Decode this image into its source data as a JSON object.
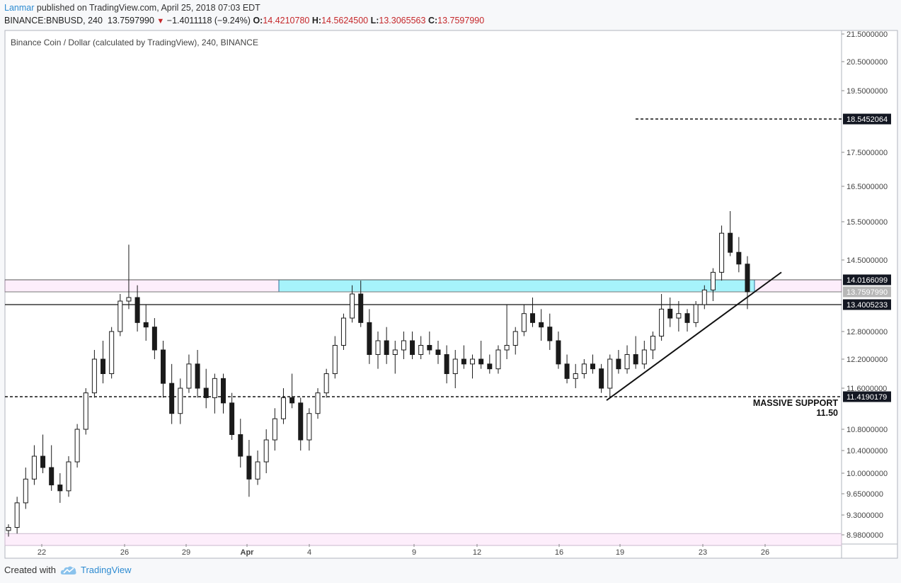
{
  "header": {
    "author": "Lanmar",
    "published_text": "published on TradingView.com, April 25, 2018 07:03 EDT",
    "symbol": "BINANCE:BNBUSD, 240",
    "last": "13.7597990",
    "change_arrow": "▼",
    "change": "−1.4011118 (−9.24%)",
    "o_label": "O:",
    "o_value": "14.4210780",
    "h_label": "H:",
    "h_value": "14.5624500",
    "l_label": "L:",
    "l_value": "13.3065563",
    "c_label": "C:",
    "c_value": "13.7597990"
  },
  "footer": {
    "created_with": "Created with",
    "brand": "TradingView",
    "brand_icon": "tradingview-cloud-icon"
  },
  "colors": {
    "candle": "#1a1a1a",
    "zone_cyan": "#a6f3fb",
    "zone_cyan_border": "#2e6d9b",
    "zone_pink": "#fdeefb",
    "tv_blue": "#2d8bd1"
  },
  "chart_data": {
    "type": "candlestick",
    "title": "Binance Coin / Dollar (calculated by TradingView), 240, BINANCE",
    "x_tick_labels": [
      "22",
      "26",
      "29",
      "Apr",
      "4",
      "9",
      "12",
      "16",
      "19",
      "23",
      "26"
    ],
    "y_tick_labels": [
      "21.5000000",
      "20.5000000",
      "19.5000000",
      "17.5000000",
      "16.5000000",
      "15.5000000",
      "14.5000000",
      "12.8000000",
      "12.2000000",
      "11.6000000",
      "10.8000000",
      "10.4000000",
      "10.0000000",
      "9.6500000",
      "9.3000000",
      "8.9800000"
    ],
    "price_badges": [
      {
        "label": "18.5452064",
        "value": 18.5452064,
        "style": "black"
      },
      {
        "label": "14.0166099",
        "value": 14.0166099,
        "style": "black"
      },
      {
        "label": "13.7597990",
        "value": 13.759799,
        "style": "gray"
      },
      {
        "label": "13.4005233",
        "value": 13.4005233,
        "style": "black"
      },
      {
        "label": "11.4190179",
        "value": 11.4190179,
        "style": "black"
      }
    ],
    "dashed_lines": [
      18.5452064,
      11.4190179
    ],
    "solid_lines": [
      14.0166099,
      13.759799,
      13.4005233
    ],
    "zones": [
      {
        "color": "cyan",
        "from": 13.759799,
        "to": 14.0166099
      },
      {
        "color": "pink",
        "from": 13.759799,
        "to": 14.0166099
      },
      {
        "color": "pink",
        "from": 8.8,
        "to": 9.0
      }
    ],
    "trendline": {
      "from": 11.35,
      "to": 14.2
    },
    "annotation": {
      "line1": "MASSIVE SUPPORT",
      "line2": "11.50"
    },
    "ohlc_sampled": [
      [
        9.05,
        9.15,
        8.95,
        9.1
      ],
      [
        9.1,
        9.6,
        9.0,
        9.5
      ],
      [
        9.5,
        10.1,
        9.4,
        9.9
      ],
      [
        9.9,
        10.5,
        9.8,
        10.3
      ],
      [
        10.3,
        10.7,
        10.0,
        10.1
      ],
      [
        10.1,
        10.5,
        9.7,
        9.8
      ],
      [
        9.8,
        10.0,
        9.5,
        9.7
      ],
      [
        9.7,
        10.3,
        9.6,
        10.2
      ],
      [
        10.2,
        10.9,
        10.1,
        10.8
      ],
      [
        10.8,
        11.6,
        10.7,
        11.5
      ],
      [
        11.5,
        12.4,
        11.4,
        12.2
      ],
      [
        12.2,
        12.6,
        11.7,
        11.9
      ],
      [
        11.9,
        12.9,
        11.8,
        12.8
      ],
      [
        12.8,
        13.7,
        12.7,
        13.5
      ],
      [
        13.5,
        14.9,
        13.3,
        13.6
      ],
      [
        13.6,
        13.9,
        12.8,
        13.0
      ],
      [
        13.0,
        13.4,
        12.6,
        12.9
      ],
      [
        12.9,
        13.1,
        12.2,
        12.4
      ],
      [
        12.4,
        12.6,
        11.4,
        11.7
      ],
      [
        11.7,
        12.1,
        10.9,
        11.1
      ],
      [
        11.1,
        11.8,
        10.9,
        11.6
      ],
      [
        11.6,
        12.3,
        11.5,
        12.1
      ],
      [
        12.1,
        12.4,
        11.4,
        11.6
      ],
      [
        11.6,
        12.0,
        11.2,
        11.4
      ],
      [
        11.4,
        11.9,
        11.1,
        11.8
      ],
      [
        11.8,
        11.9,
        11.1,
        11.3
      ],
      [
        11.3,
        11.5,
        10.6,
        10.7
      ],
      [
        10.7,
        11.0,
        10.1,
        10.3
      ],
      [
        10.3,
        10.6,
        9.6,
        9.9
      ],
      [
        9.9,
        10.4,
        9.8,
        10.2
      ],
      [
        10.2,
        10.8,
        10.0,
        10.6
      ],
      [
        10.6,
        11.2,
        10.4,
        11.0
      ],
      [
        11.0,
        11.6,
        10.9,
        11.4
      ],
      [
        11.4,
        11.9,
        11.2,
        11.3
      ],
      [
        11.3,
        11.4,
        10.4,
        10.6
      ],
      [
        10.6,
        11.2,
        10.4,
        11.1
      ],
      [
        11.1,
        11.6,
        11.0,
        11.5
      ],
      [
        11.5,
        12.0,
        11.4,
        11.9
      ],
      [
        11.9,
        12.7,
        11.8,
        12.5
      ],
      [
        12.5,
        13.2,
        12.4,
        13.1
      ],
      [
        13.1,
        13.9,
        13.0,
        13.7
      ],
      [
        13.7,
        14.0,
        12.9,
        13.0
      ],
      [
        13.0,
        13.3,
        12.1,
        12.3
      ],
      [
        12.3,
        12.8,
        12.0,
        12.6
      ],
      [
        12.6,
        12.9,
        12.1,
        12.3
      ],
      [
        12.3,
        12.6,
        11.9,
        12.4
      ],
      [
        12.4,
        12.8,
        12.2,
        12.6
      ],
      [
        12.6,
        12.8,
        12.2,
        12.3
      ],
      [
        12.3,
        12.7,
        12.2,
        12.5
      ],
      [
        12.5,
        12.8,
        12.3,
        12.4
      ],
      [
        12.4,
        12.6,
        12.1,
        12.3
      ],
      [
        12.3,
        12.5,
        11.7,
        11.9
      ],
      [
        11.9,
        12.4,
        11.6,
        12.2
      ],
      [
        12.2,
        12.5,
        12.0,
        12.1
      ],
      [
        12.1,
        12.3,
        11.8,
        12.2
      ],
      [
        12.2,
        12.6,
        12.0,
        12.1
      ],
      [
        12.1,
        12.3,
        11.9,
        12.0
      ],
      [
        12.0,
        12.5,
        11.9,
        12.4
      ],
      [
        12.4,
        13.4,
        12.2,
        12.5
      ],
      [
        12.5,
        12.9,
        12.3,
        12.8
      ],
      [
        12.8,
        13.4,
        12.7,
        13.2
      ],
      [
        13.2,
        13.6,
        12.9,
        13.0
      ],
      [
        13.0,
        13.3,
        12.6,
        12.9
      ],
      [
        12.9,
        13.2,
        12.4,
        12.6
      ],
      [
        12.6,
        12.8,
        12.0,
        12.1
      ],
      [
        12.1,
        12.3,
        11.7,
        11.8
      ],
      [
        11.8,
        12.1,
        11.6,
        11.9
      ],
      [
        11.9,
        12.2,
        11.8,
        12.1
      ],
      [
        12.1,
        12.3,
        11.9,
        12.0
      ],
      [
        12.0,
        12.1,
        11.5,
        11.6
      ],
      [
        11.6,
        12.3,
        11.4,
        12.2
      ],
      [
        12.2,
        12.4,
        11.9,
        12.0
      ],
      [
        12.0,
        12.5,
        11.9,
        12.3
      ],
      [
        12.3,
        12.7,
        12.0,
        12.1
      ],
      [
        12.1,
        12.6,
        12.0,
        12.4
      ],
      [
        12.4,
        12.8,
        12.2,
        12.7
      ],
      [
        12.7,
        13.7,
        12.6,
        13.3
      ],
      [
        13.3,
        13.6,
        12.9,
        13.1
      ],
      [
        13.1,
        13.5,
        12.8,
        13.2
      ],
      [
        13.2,
        13.3,
        12.8,
        13.0
      ],
      [
        13.0,
        13.5,
        12.9,
        13.4
      ],
      [
        13.4,
        13.9,
        13.3,
        13.8
      ],
      [
        13.8,
        14.3,
        13.5,
        14.2
      ],
      [
        14.2,
        15.4,
        14.0,
        15.2
      ],
      [
        15.2,
        15.8,
        14.6,
        14.7
      ],
      [
        14.7,
        15.1,
        14.2,
        14.4
      ],
      [
        14.4,
        14.6,
        13.3,
        13.76
      ]
    ]
  }
}
